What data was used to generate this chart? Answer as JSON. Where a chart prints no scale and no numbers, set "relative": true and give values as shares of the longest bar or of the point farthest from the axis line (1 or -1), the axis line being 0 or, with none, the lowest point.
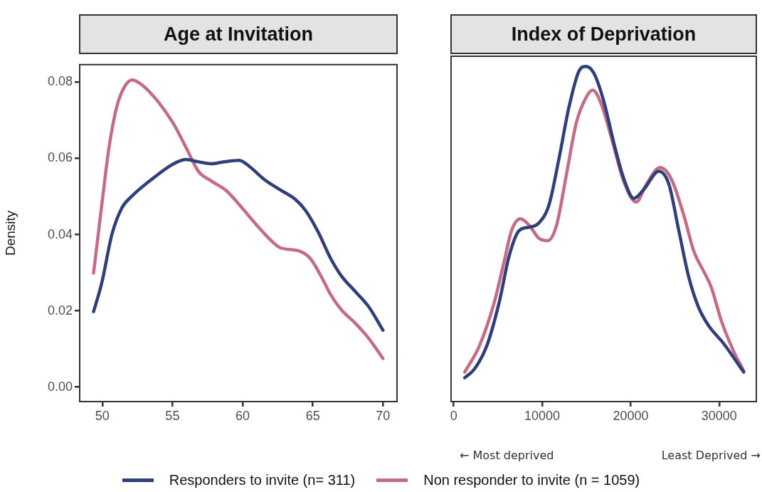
{
  "chart_data": [
    {
      "type": "line",
      "title": "Age at Invitation",
      "ylabel": "Density",
      "xlim": [
        48.39,
        71.0
      ],
      "ylim": [
        -0.0038,
        0.0846
      ],
      "xticks": [
        50,
        55,
        60,
        65,
        70
      ],
      "yticks": [
        {
          "value": 0,
          "label": "0.00"
        },
        {
          "value": 0.02,
          "label": "0.02"
        },
        {
          "value": 0.04,
          "label": "0.04"
        },
        {
          "value": 0.06,
          "label": "0.06"
        },
        {
          "value": 0.08,
          "label": "0.08"
        }
      ],
      "grid": false,
      "legend": "bottom",
      "marker": "none",
      "line_style": "solid",
      "series": [
        {
          "name": "Responders to invite (n= 311)",
          "color": "#2e3f7a",
          "x": [
            49.38,
            49.96,
            50.69,
            51.41,
            52.14,
            53.59,
            55.04,
            55.95,
            56.85,
            57.76,
            58.67,
            59.76,
            60.48,
            61.57,
            62.66,
            63.74,
            64.47,
            65.38,
            66.28,
            67.01,
            68.1,
            69.0,
            70.0
          ],
          "values": [
            0.0198,
            0.0273,
            0.0401,
            0.0471,
            0.0502,
            0.0547,
            0.0585,
            0.0597,
            0.0591,
            0.0586,
            0.0591,
            0.0595,
            0.0579,
            0.0544,
            0.0518,
            0.0493,
            0.0464,
            0.0407,
            0.0337,
            0.0293,
            0.0248,
            0.021,
            0.0149
          ]
        },
        {
          "name": "Non responder to invite (n = 1059)",
          "color": "#c56b85",
          "x": [
            49.38,
            49.96,
            50.51,
            51.05,
            51.6,
            52.14,
            52.86,
            53.95,
            55.04,
            55.95,
            56.85,
            57.76,
            58.85,
            59.94,
            60.84,
            61.93,
            62.66,
            64.11,
            64.83,
            65.56,
            66.28,
            67.01,
            68.1,
            69.0,
            70.0
          ],
          "values": [
            0.0299,
            0.0477,
            0.0636,
            0.0738,
            0.0789,
            0.0806,
            0.0792,
            0.075,
            0.0693,
            0.063,
            0.0566,
            0.0541,
            0.0515,
            0.0471,
            0.0432,
            0.0388,
            0.0366,
            0.0356,
            0.0337,
            0.0293,
            0.0242,
            0.0204,
            0.0165,
            0.0127,
            0.0075
          ]
        }
      ]
    },
    {
      "type": "line",
      "title": "Index of Deprivation",
      "relative": true,
      "xlim": [
        -300,
        34200
      ],
      "xticks": [
        0,
        10000,
        20000,
        30000
      ],
      "tick_labels": "x",
      "grid": false,
      "marker": "none",
      "line_style": "solid",
      "annotations": [
        "← Most deprived",
        "Least Deprived →"
      ],
      "series": [
        {
          "color": "#2e3f7a",
          "x": [
            1240,
            2310,
            3720,
            5130,
            6260,
            7390,
            8520,
            9640,
            10770,
            11900,
            13030,
            14160,
            14950,
            15850,
            16980,
            18100,
            19230,
            20360,
            21490,
            23180,
            24310,
            25440,
            26560,
            27690,
            28820,
            30510,
            32770
          ],
          "values": [
            0.071,
            0.096,
            0.165,
            0.295,
            0.434,
            0.51,
            0.52,
            0.533,
            0.587,
            0.725,
            0.879,
            0.986,
            1,
            0.979,
            0.894,
            0.771,
            0.664,
            0.606,
            0.633,
            0.687,
            0.649,
            0.51,
            0.372,
            0.28,
            0.226,
            0.173,
            0.088
          ]
        },
        {
          "color": "#c56b85",
          "x": [
            1240,
            2880,
            4570,
            5700,
            6540,
            7530,
            8520,
            9640,
            10630,
            11620,
            12750,
            13870,
            15000,
            15710,
            16700,
            17820,
            19230,
            20640,
            21770,
            23320,
            24590,
            26000,
            27130,
            28260,
            29100,
            30230,
            31640,
            32770
          ],
          "values": [
            0.088,
            0.165,
            0.295,
            0.418,
            0.51,
            0.545,
            0.526,
            0.487,
            0.48,
            0.526,
            0.679,
            0.833,
            0.909,
            0.929,
            0.886,
            0.787,
            0.656,
            0.595,
            0.648,
            0.698,
            0.664,
            0.556,
            0.449,
            0.388,
            0.342,
            0.242,
            0.15,
            0.092
          ]
        }
      ]
    }
  ]
}
